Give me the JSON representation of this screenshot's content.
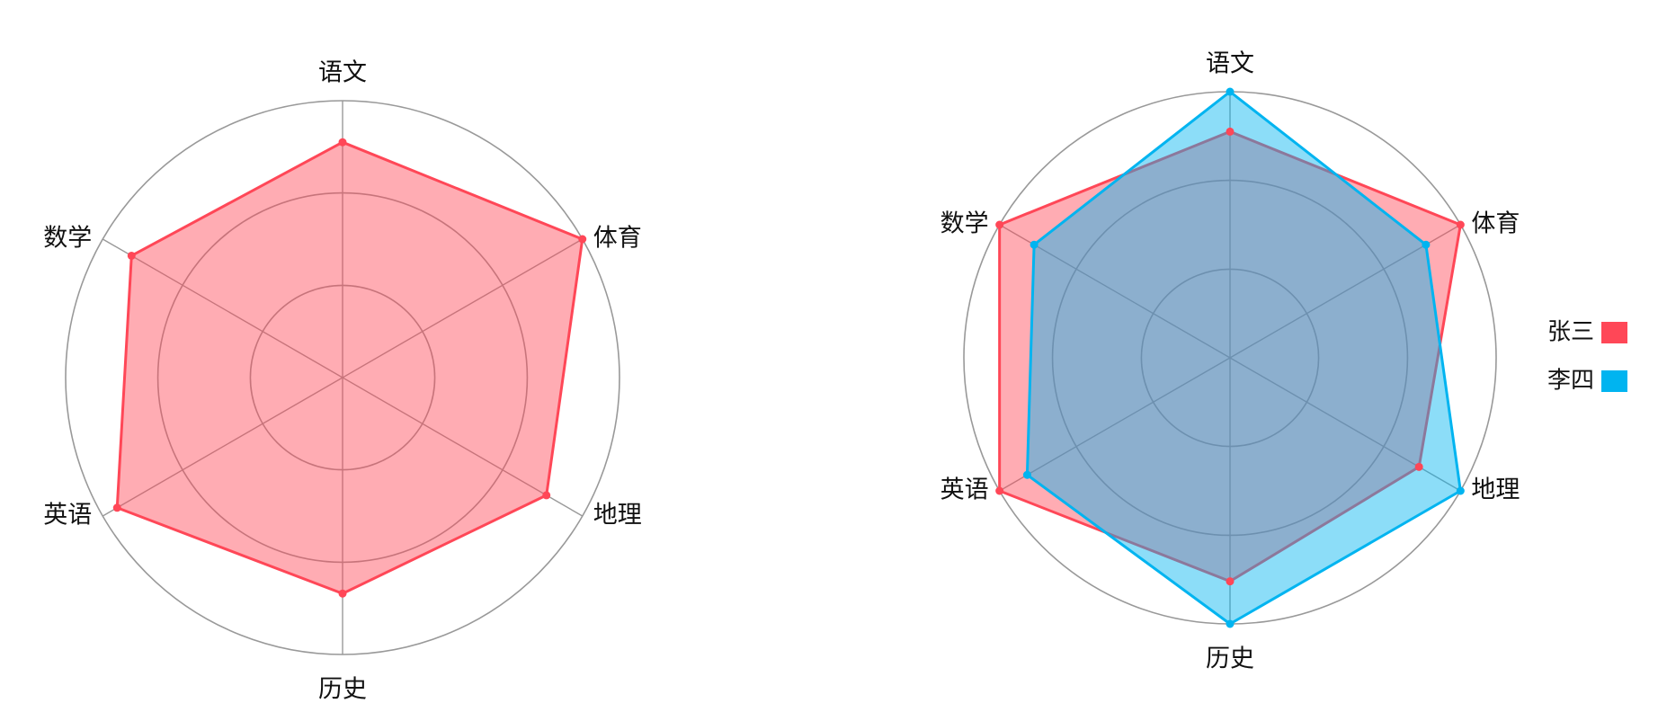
{
  "chart_data": [
    {
      "type": "radar",
      "categories": [
        "语文",
        "体育",
        "地理",
        "历史",
        "英语",
        "数学"
      ],
      "rmax": 100,
      "rings": [
        33.3,
        66.7,
        100
      ],
      "legend": "none",
      "series": [
        {
          "values": [
            85,
            100,
            85,
            78,
            94,
            88
          ],
          "color": "#ff4757"
        }
      ]
    },
    {
      "type": "radar",
      "categories": [
        "语文",
        "体育",
        "地理",
        "历史",
        "英语",
        "数学"
      ],
      "rmax": 100,
      "rings": [
        33.3,
        66.7,
        100
      ],
      "legend": "right",
      "series": [
        {
          "name": "张三",
          "values": [
            85,
            100,
            82,
            84,
            100,
            100
          ],
          "color": "#ff4757"
        },
        {
          "name": "李四",
          "values": [
            100,
            85,
            100,
            100,
            88,
            85
          ],
          "color": "#00b4f0"
        }
      ]
    }
  ]
}
